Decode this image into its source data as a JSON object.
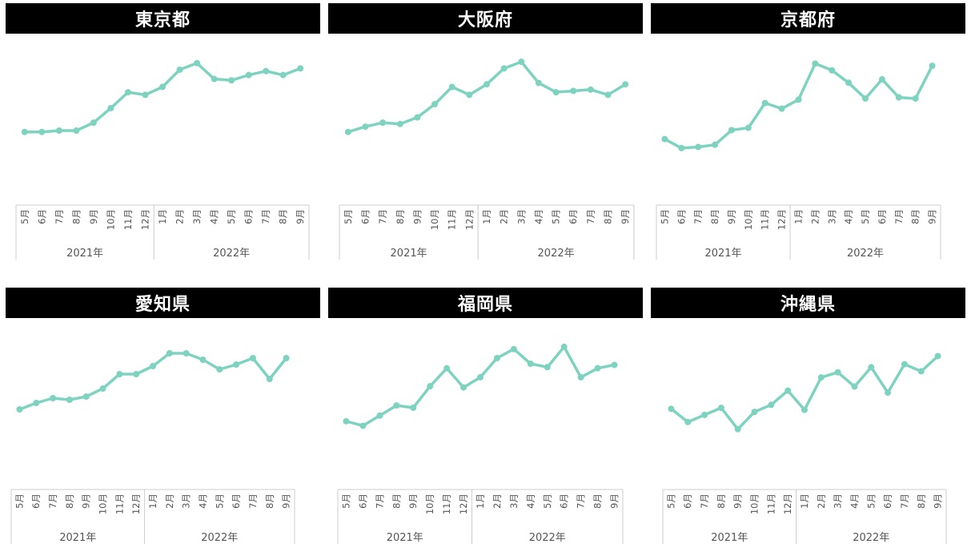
{
  "style": {
    "line_color": "#7dd3c0",
    "title_bg": "#000000",
    "title_fg": "#ffffff",
    "axis_color": "#cccccc"
  },
  "chart_data": [
    {
      "type": "line",
      "title": "東京都",
      "categories": [
        "5月",
        "6月",
        "7月",
        "8月",
        "9月",
        "10月",
        "11月",
        "12月",
        "1月",
        "2月",
        "3月",
        "4月",
        "5月",
        "6月",
        "7月",
        "8月",
        "9月"
      ],
      "groups": [
        {
          "label": "2021年",
          "count": 8
        },
        {
          "label": "2022年",
          "count": 9
        }
      ],
      "values": [
        18,
        18,
        19,
        19,
        25,
        36,
        48,
        46,
        52,
        65,
        70,
        58,
        57,
        61,
        64,
        61,
        66
      ],
      "ylim": [
        -30,
        85
      ]
    },
    {
      "type": "line",
      "title": "大阪府",
      "categories": [
        "5月",
        "6月",
        "7月",
        "8月",
        "9月",
        "10月",
        "11月",
        "12月",
        "1月",
        "2月",
        "3月",
        "4月",
        "5月",
        "6月",
        "7月",
        "8月",
        "9月"
      ],
      "groups": [
        {
          "label": "2021年",
          "count": 8
        },
        {
          "label": "2022年",
          "count": 9
        }
      ],
      "values": [
        18,
        22,
        25,
        24,
        29,
        39,
        52,
        46,
        54,
        66,
        71,
        55,
        48,
        49,
        50,
        46,
        54
      ],
      "ylim": [
        -30,
        85
      ]
    },
    {
      "type": "line",
      "title": "京都府",
      "categories": [
        "5月",
        "6月",
        "7月",
        "8月",
        "9月",
        "10月",
        "11月",
        "12月",
        "1月",
        "2月",
        "3月",
        "4月",
        "5月",
        "6月",
        "7月",
        "8月",
        "9月"
      ],
      "groups": [
        {
          "label": "2021年",
          "count": 8
        },
        {
          "label": "2022年",
          "count": 9
        }
      ],
      "values": [
        10,
        2,
        3,
        5,
        18,
        20,
        42,
        37,
        45,
        77,
        71,
        60,
        46,
        63,
        47,
        46,
        75
      ],
      "ylim": [
        -40,
        95
      ]
    },
    {
      "type": "line",
      "title": "愛知県",
      "categories": [
        "5月",
        "6月",
        "7月",
        "8月",
        "9月",
        "10月",
        "11月",
        "12月",
        "1月",
        "2月",
        "3月",
        "4月",
        "5月",
        "6月",
        "7月",
        "8月",
        "9月"
      ],
      "groups": [
        {
          "label": "2021年",
          "count": 8
        },
        {
          "label": "2022年",
          "count": 9
        }
      ],
      "values": [
        24,
        28,
        31,
        30,
        32,
        37,
        46,
        46,
        51,
        59,
        59,
        55,
        49,
        52,
        56,
        43,
        56
      ],
      "ylim": [
        -20,
        75
      ]
    },
    {
      "type": "line",
      "title": "福岡県",
      "categories": [
        "5月",
        "6月",
        "7月",
        "8月",
        "9月",
        "10月",
        "11月",
        "12月",
        "1月",
        "2月",
        "3月",
        "4月",
        "5月",
        "6月",
        "7月",
        "8月",
        "9月"
      ],
      "groups": [
        {
          "label": "2021年",
          "count": 8
        },
        {
          "label": "2022年",
          "count": 9
        }
      ],
      "values": [
        12,
        8,
        17,
        26,
        24,
        43,
        59,
        42,
        51,
        68,
        76,
        63,
        60,
        78,
        51,
        59,
        62
      ],
      "ylim": [
        -40,
        95
      ]
    },
    {
      "type": "line",
      "title": "沖縄県",
      "categories": [
        "5月",
        "6月",
        "7月",
        "8月",
        "9月",
        "10月",
        "11月",
        "12月",
        "1月",
        "2月",
        "3月",
        "4月",
        "5月",
        "6月",
        "7月",
        "8月",
        "9月"
      ],
      "groups": [
        {
          "label": "2021年",
          "count": 8
        },
        {
          "label": "2022年",
          "count": 9
        }
      ],
      "values": [
        30,
        17,
        24,
        31,
        10,
        27,
        34,
        48,
        29,
        61,
        66,
        52,
        71,
        46,
        74,
        67,
        82
      ],
      "ylim": [
        -40,
        110
      ]
    }
  ]
}
